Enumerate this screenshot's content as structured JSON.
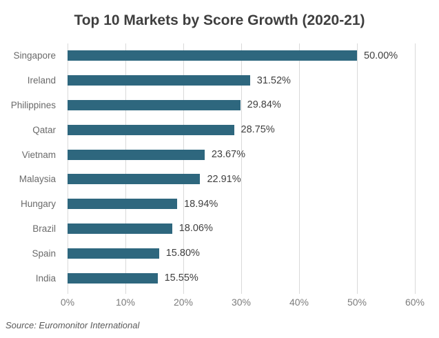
{
  "chart_data": {
    "type": "bar",
    "orientation": "horizontal",
    "title": "Top 10 Markets by Score Growth (2020-21)",
    "categories": [
      "Singapore",
      "Ireland",
      "Philippines",
      "Qatar",
      "Vietnam",
      "Malaysia",
      "Hungary",
      "Brazil",
      "Spain",
      "India"
    ],
    "values": [
      50.0,
      31.52,
      29.84,
      28.75,
      23.67,
      22.91,
      18.94,
      18.06,
      15.8,
      15.55
    ],
    "value_labels": [
      "50.00%",
      "31.52%",
      "29.84%",
      "28.75%",
      "23.67%",
      "22.91%",
      "18.94%",
      "18.06%",
      "15.80%",
      "15.55%"
    ],
    "x_ticks": [
      "0%",
      "10%",
      "20%",
      "30%",
      "40%",
      "50%",
      "60%"
    ],
    "xlim": [
      0,
      60
    ],
    "grid": "vertical-gridlines",
    "legend_position": "none",
    "source": "Source: Euromonitor International",
    "colors": {
      "bar": "#2e677e",
      "gridline": "#d9d9d9",
      "title": "#3f3f3f",
      "category_label": "#6a6a6a",
      "value_label": "#3f3f3f",
      "axis_tick_label": "#7c7c7c",
      "source_text": "#595959",
      "background": "#ffffff"
    }
  }
}
